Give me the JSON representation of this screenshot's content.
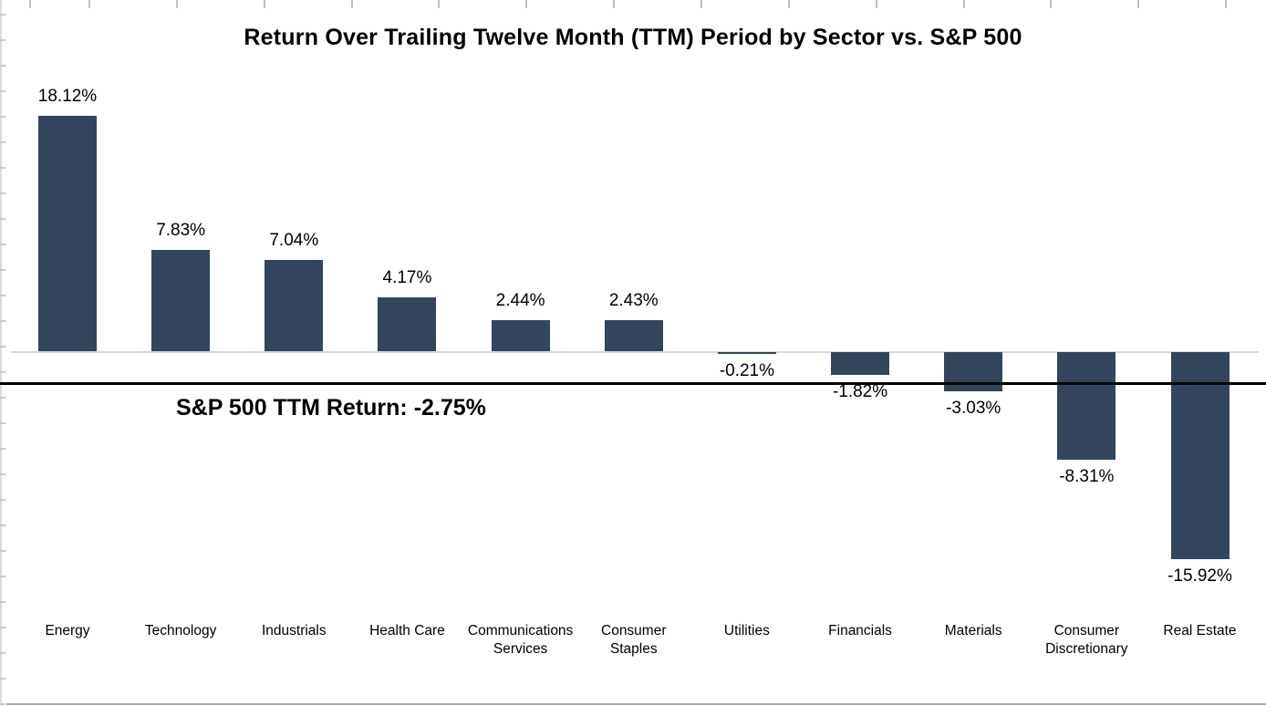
{
  "chart_data": {
    "type": "bar",
    "title": "Return Over Trailing Twelve Month (TTM) Period by Sector vs. S&P 500",
    "categories": [
      "Energy",
      "Technology",
      "Industrials",
      "Health Care",
      "Communications Services",
      "Consumer Staples",
      "Utilities",
      "Financials",
      "Materials",
      "Consumer Discretionary",
      "Real Estate"
    ],
    "category_display": [
      "Energy",
      "Technology",
      "Industrials",
      "Health Care",
      "Communications\nServices",
      "Consumer\nStaples",
      "Utilities",
      "Financials",
      "Materials",
      "Consumer\nDiscretionary",
      "Real Estate"
    ],
    "values": [
      18.12,
      7.83,
      7.04,
      4.17,
      2.44,
      2.43,
      -0.21,
      -1.82,
      -3.03,
      -8.31,
      -15.92
    ],
    "value_labels": [
      "18.12%",
      "7.83%",
      "7.04%",
      "4.17%",
      "2.44%",
      "2.43%",
      "-0.21%",
      "-1.82%",
      "-3.03%",
      "-8.31%",
      "-15.92%"
    ],
    "unit": "%",
    "orientation": "vertical",
    "value_label_position": "outside-end",
    "bar_color": "#32455C",
    "baseline_color": "#d9d9d9",
    "reference_line": {
      "label": "S&P 500 TTM Return: -2.75%",
      "value": -2.75,
      "color": "#000000"
    },
    "xlabel": "",
    "ylabel": "",
    "ylim": [
      -18,
      20
    ],
    "grid": false,
    "legend": false
  }
}
